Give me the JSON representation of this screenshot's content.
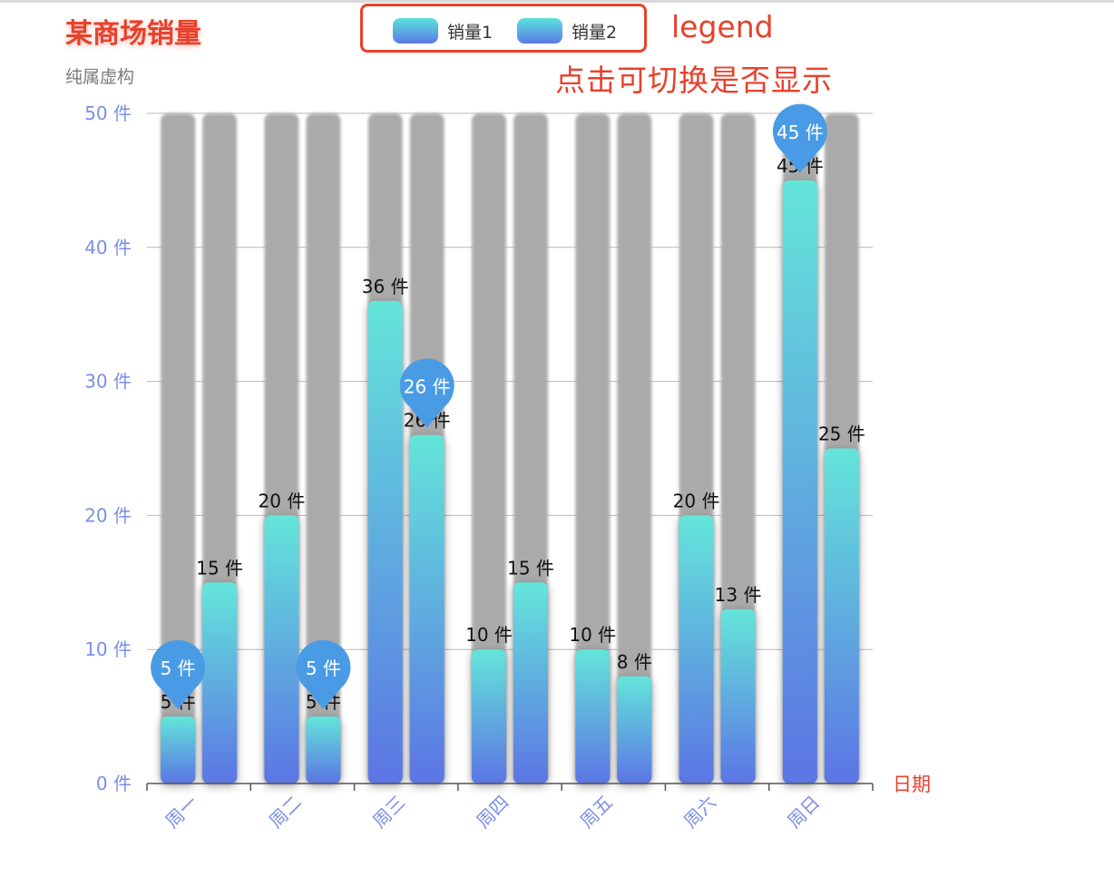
{
  "title": "某商场销量",
  "subtitle": "纯属虚构",
  "annotations": {
    "legend": "legend",
    "toggle": "点击可切换是否显示"
  },
  "colors": {
    "accent_red": "#e8412c",
    "axis_label_blue": "#7a8fe6",
    "bar_top": "#64e5da",
    "bar_bottom": "#5b75e4",
    "bar_background": "#aaaaaa",
    "pin": "#4a9be5"
  },
  "chart_data": {
    "type": "bar",
    "title": "某商场销量",
    "subtitle": "纯属虚构",
    "categories": [
      "周一",
      "周二",
      "周三",
      "周四",
      "周五",
      "周六",
      "周日"
    ],
    "series": [
      {
        "name": "销量1",
        "values": [
          5,
          20,
          36,
          10,
          10,
          20,
          45
        ]
      },
      {
        "name": "销量2",
        "values": [
          15,
          5,
          26,
          15,
          8,
          13,
          25
        ]
      }
    ],
    "value_labels": {
      "销量1": [
        "5 件",
        "20 件",
        "36 件",
        "10 件",
        "10 件",
        "20 件",
        "45 件"
      ],
      "销量2": [
        "15 件",
        "5 件",
        "26 件",
        "15 件",
        "8 件",
        "13 件",
        "25 件"
      ]
    },
    "yticks": [
      0,
      10,
      20,
      30,
      40,
      50
    ],
    "ytick_labels": [
      "0 件",
      "10 件",
      "20 件",
      "30 件",
      "40 件",
      "50 件"
    ],
    "ylim": [
      0,
      50
    ],
    "xlabel": "日期",
    "ylabel": "",
    "grid": true,
    "legend": {
      "position": "top-center",
      "entries": [
        "销量1",
        "销量2"
      ]
    },
    "markpoints": [
      {
        "series": "销量1",
        "category": "周一",
        "label": "5 件",
        "type": "min"
      },
      {
        "series": "销量1",
        "category": "周日",
        "label": "45 件",
        "type": "max"
      },
      {
        "series": "销量2",
        "category": "周二",
        "label": "5 件",
        "type": "min"
      },
      {
        "series": "销量2",
        "category": "周三",
        "label": "26 件",
        "type": "max"
      }
    ]
  }
}
